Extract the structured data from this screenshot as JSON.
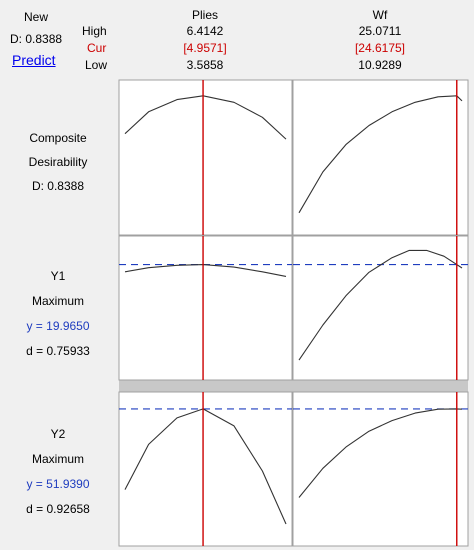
{
  "header": {
    "new_label": "New",
    "d_label": "D: 0.8388",
    "predict_label": "Predict",
    "row_labels": [
      "High",
      "Cur",
      "Low"
    ]
  },
  "factors": [
    {
      "name": "Plies",
      "high": "6.4142",
      "cur": "[4.9571]",
      "low": "3.5858"
    },
    {
      "name": "Wf",
      "high": "25.0711",
      "cur": "[24.6175]",
      "low": "10.9289"
    }
  ],
  "rows": [
    {
      "title1": "Composite",
      "title2": "Desirability",
      "line3": "D: 0.8388",
      "line4": ""
    },
    {
      "title1": "Y1",
      "title2": "Maximum",
      "line3": "y = 19.9650",
      "line4": "d = 0.75933"
    },
    {
      "title1": "Y2",
      "title2": "Maximum",
      "line3": "y = 51.9390",
      "line4": "d = 0.92658"
    }
  ],
  "colors": {
    "current_line": "#cc0000",
    "target_line": "#1f3dbf",
    "curve": "#333333",
    "background": "#f0f0f0",
    "panel": "#ffffff"
  },
  "chart_data": {
    "type": "line",
    "factors": [
      {
        "name": "Plies",
        "low": 3.5858,
        "high": 6.4142,
        "current": 4.9571
      },
      {
        "name": "Wf",
        "low": 10.9289,
        "high": 25.0711,
        "current": 24.6175
      }
    ],
    "responses": [
      {
        "name": "Composite Desirability",
        "value": 0.8388,
        "curves": [
          {
            "factor": "Plies",
            "x": [
              3.5858,
              4.0,
              4.5,
              4.9571,
              5.5,
              6.0,
              6.4142
            ],
            "y": [
              0.7,
              0.78,
              0.825,
              0.8388,
              0.815,
              0.76,
              0.68
            ]
          },
          {
            "factor": "Wf",
            "x": [
              10.9289,
              13.0,
              15.0,
              17.0,
              19.0,
              21.0,
              23.0,
              24.6175,
              25.0711
            ],
            "y": [
              0.41,
              0.56,
              0.66,
              0.73,
              0.78,
              0.815,
              0.835,
              0.8388,
              0.82
            ]
          }
        ]
      },
      {
        "name": "Y1",
        "goal": "Maximum",
        "value": 19.965,
        "d": 0.75933,
        "curves": [
          {
            "factor": "Plies",
            "x": [
              3.5858,
              4.0,
              4.5,
              4.9571,
              5.5,
              6.0,
              6.4142
            ],
            "y": [
              19.72,
              19.86,
              19.94,
              19.965,
              19.88,
              19.72,
              19.56
            ]
          },
          {
            "factor": "Wf",
            "x": [
              10.9289,
              13.0,
              15.0,
              17.0,
              19.0,
              20.5,
              22.0,
              23.5,
              24.6175,
              25.0711
            ],
            "y": [
              16.7,
              17.9,
              18.9,
              19.7,
              20.2,
              20.45,
              20.45,
              20.25,
              19.965,
              19.85
            ]
          }
        ]
      },
      {
        "name": "Y2",
        "goal": "Maximum",
        "value": 51.939,
        "d": 0.92658,
        "curves": [
          {
            "factor": "Plies",
            "x": [
              3.5858,
              4.0,
              4.5,
              4.9571,
              5.5,
              6.0,
              6.4142
            ],
            "y": [
              48.9,
              50.6,
              51.6,
              51.939,
              51.3,
              49.6,
              47.6
            ]
          },
          {
            "factor": "Wf",
            "x": [
              10.9289,
              13.0,
              15.0,
              17.0,
              19.0,
              21.0,
              23.0,
              24.6175,
              25.0711
            ],
            "y": [
              48.6,
              49.7,
              50.5,
              51.1,
              51.5,
              51.78,
              51.93,
              51.939,
              51.93
            ]
          }
        ]
      }
    ]
  }
}
